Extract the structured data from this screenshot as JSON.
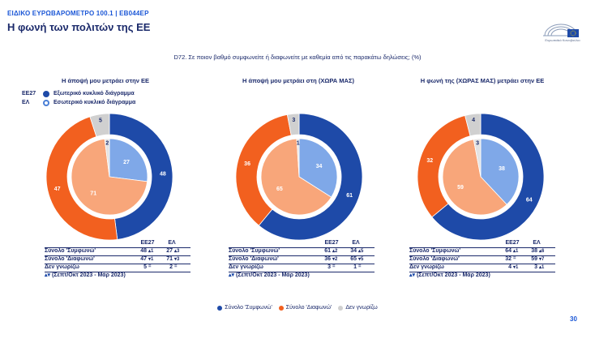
{
  "header": {
    "survey": "ΕΙΔΙΚΟ ΕΥΡΩΒΑΡΟΜΕΤΡΟ 100.1 | EB044EP",
    "title": "Η φωνή των πολιτών της ΕΕ",
    "logo_caption": "Ευρωπαϊκό Κοινοβούλιο"
  },
  "question": "D72. Σε ποιον βαθμό συμφωνείτε ή διαφωνείτε με καθεμία από τις παρακάτω δηλώσεις; (%)",
  "ring_legend": {
    "outer_code": "ΕΕ27",
    "outer_label": "Εξωτερικό κυκλικό διάγραμμα",
    "inner_code": "ΕΛ",
    "inner_label": "Εσωτερικό κυκλικό διάγραμμα"
  },
  "colors": {
    "agree": "#1e4aa8",
    "disagree": "#f2601f",
    "dontknow": "#d0d0d0",
    "agree_inner": "#7fa8e8",
    "disagree_inner": "#f8a67a",
    "dontknow_inner": "#e3e3e3"
  },
  "table_header": {
    "col1": "ΕΕ27",
    "col2": "ΕΛ"
  },
  "row_labels": {
    "agree": "Σύνολο 'Συμφωνώ'",
    "disagree": "Σύνολο 'Διαφωνώ'",
    "dontknow": "Δεν γνωρίζω"
  },
  "note": {
    "arrows": "▴▾",
    "text": " (Σεπτ/Οκτ 2023 - Μάρ 2023)"
  },
  "bottom_legend": {
    "agree": "Σύνολο 'Συμφωνώ'",
    "disagree": "Σύνολο 'Διαφωνώ'",
    "dontknow": "Δεν γνωρίζω"
  },
  "page_number": "30",
  "chart_data": [
    {
      "type": "pie",
      "title": "Η άποψή μου μετράει στην ΕΕ",
      "categories": [
        "Σύνολο 'Συμφωνώ'",
        "Σύνολο 'Διαφωνώ'",
        "Δεν γνωρίζω"
      ],
      "series": [
        {
          "name": "ΕΕ27",
          "ring": "outer",
          "values": [
            48,
            47,
            5
          ],
          "changes": [
            "▴1",
            "▾1",
            "="
          ]
        },
        {
          "name": "ΕΛ",
          "ring": "inner",
          "values": [
            27,
            71,
            2
          ],
          "changes": [
            "▴3",
            "▾3",
            "="
          ]
        }
      ]
    },
    {
      "type": "pie",
      "title": "Η άποψή μου μετράει στη (ΧΩΡΑ ΜΑΣ)",
      "categories": [
        "Σύνολο 'Συμφωνώ'",
        "Σύνολο 'Διαφωνώ'",
        "Δεν γνωρίζω"
      ],
      "series": [
        {
          "name": "ΕΕ27",
          "ring": "outer",
          "values": [
            61,
            36,
            3
          ],
          "changes": [
            "▴2",
            "▾2",
            "="
          ]
        },
        {
          "name": "ΕΛ",
          "ring": "inner",
          "values": [
            34,
            65,
            1
          ],
          "changes": [
            "▴5",
            "▾5",
            "="
          ]
        }
      ]
    },
    {
      "type": "pie",
      "title": "Η φωνή της (ΧΩΡΑΣ ΜΑΣ) μετράει στην ΕΕ",
      "categories": [
        "Σύνολο 'Συμφωνώ'",
        "Σύνολο 'Διαφωνώ'",
        "Δεν γνωρίζω"
      ],
      "series": [
        {
          "name": "ΕΕ27",
          "ring": "outer",
          "values": [
            64,
            32,
            4
          ],
          "changes": [
            "▴1",
            "=",
            "▾1"
          ]
        },
        {
          "name": "ΕΛ",
          "ring": "inner",
          "values": [
            38,
            59,
            3
          ],
          "changes": [
            "▴6",
            "▾7",
            "▴1"
          ]
        }
      ]
    }
  ]
}
